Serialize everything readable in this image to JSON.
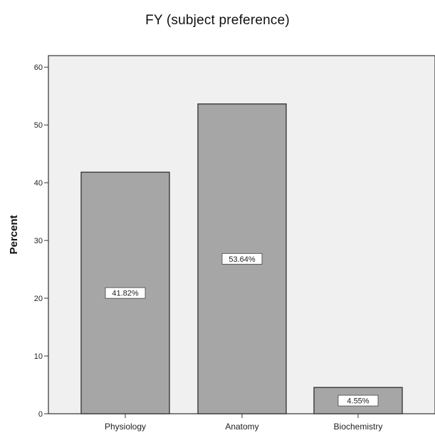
{
  "chart_data": {
    "type": "bar",
    "title": "FY (subject preference)",
    "xlabel": "",
    "ylabel": "Percent",
    "categories": [
      "Physiology",
      "Anatomy",
      "Biochemistry"
    ],
    "values": [
      41.82,
      53.64,
      4.55
    ],
    "data_labels": [
      "41.82%",
      "53.64%",
      "4.55%"
    ],
    "ylim": [
      0,
      62
    ],
    "yticks": [
      0,
      10,
      20,
      30,
      40,
      50,
      60
    ],
    "grid": false,
    "legend": "none",
    "colors": {
      "plot_background": "#f0f0f0",
      "bar_fill": "#a6a6a6",
      "bar_stroke": "#3a3a3a",
      "axis": "#333333"
    }
  }
}
